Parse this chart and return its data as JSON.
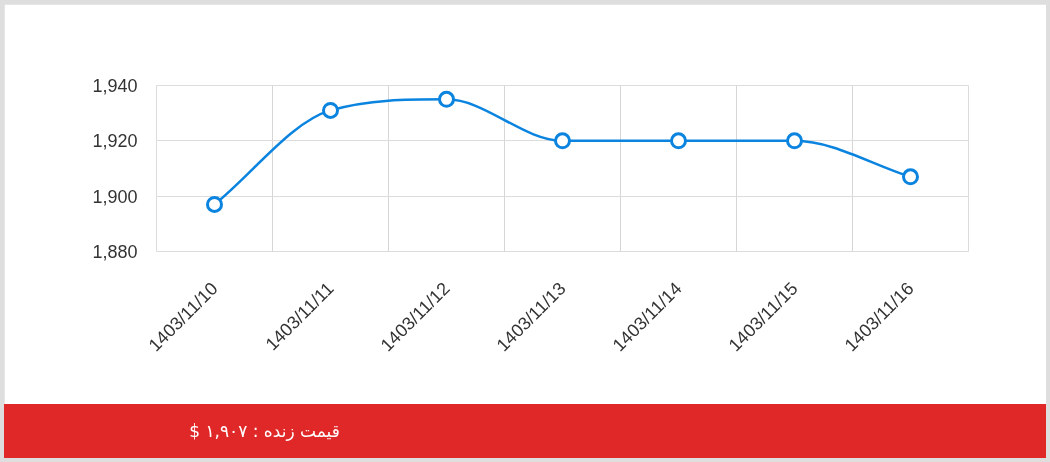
{
  "chart_data": {
    "type": "line",
    "categories": [
      "1403/11/10",
      "1403/11/11",
      "1403/11/12",
      "1403/11/13",
      "1403/11/14",
      "1403/11/15",
      "1403/11/16"
    ],
    "values": [
      1897,
      1931,
      1935,
      1920,
      1920,
      1920,
      1907
    ],
    "color": "#0b84e0",
    "ylim": [
      1880,
      1940
    ],
    "yticks": [
      {
        "value": 1880,
        "label": "1,880"
      },
      {
        "value": 1900,
        "label": "1,900"
      },
      {
        "value": 1920,
        "label": "1,920"
      },
      {
        "value": 1940,
        "label": "1,940"
      }
    ],
    "grid": true,
    "marker": "circle",
    "annotations": [
      "قیمت زنده : ۱,۹۰۷ $"
    ]
  }
}
